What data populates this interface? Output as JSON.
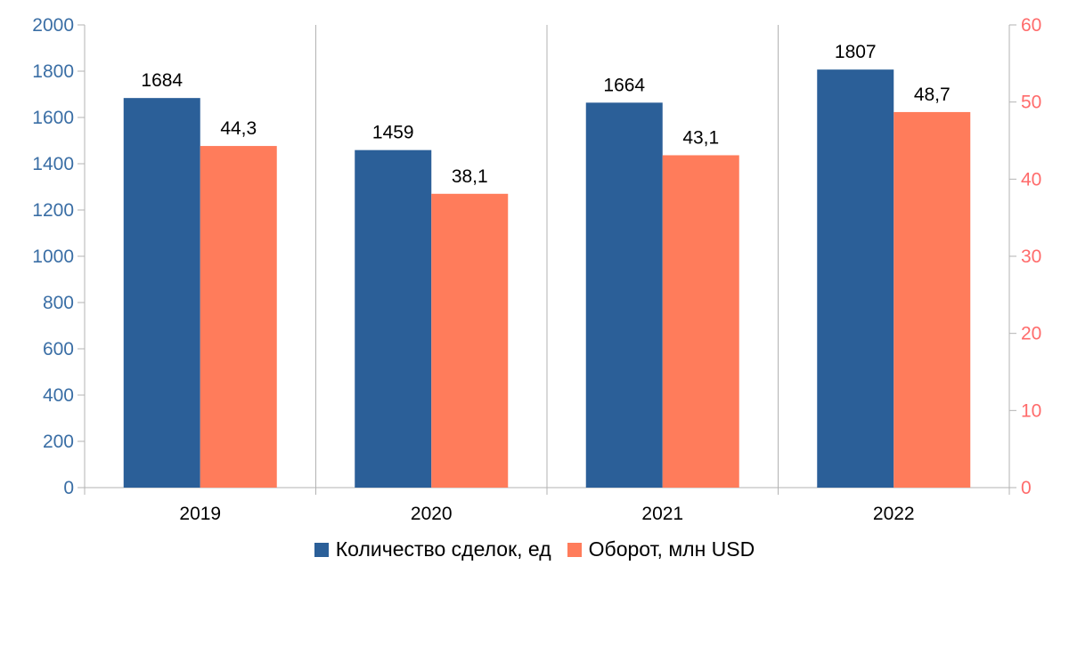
{
  "chart_data": {
    "type": "bar",
    "categories": [
      "2019",
      "2020",
      "2021",
      "2022"
    ],
    "series": [
      {
        "name": "Количество сделок, ед",
        "axis": "left",
        "values": [
          1684,
          1459,
          1664,
          1807
        ],
        "labels": [
          "1684",
          "1459",
          "1664",
          "1807"
        ],
        "color": "#2b5f98"
      },
      {
        "name": "Оборот, млн USD",
        "axis": "right",
        "values": [
          44.3,
          38.1,
          43.1,
          48.7
        ],
        "labels": [
          "44,3",
          "38,1",
          "43,1",
          "48,7"
        ],
        "color": "#ff7c5b"
      }
    ],
    "y_left": {
      "ylim": [
        0,
        2000
      ],
      "ticks": [
        "0",
        "200",
        "400",
        "600",
        "800",
        "1000",
        "1200",
        "1400",
        "1600",
        "1800",
        "2000"
      ],
      "color": "#3a6ea5"
    },
    "y_right": {
      "ylim": [
        0,
        60
      ],
      "ticks": [
        "0",
        "10",
        "20",
        "30",
        "40",
        "50",
        "60"
      ],
      "color": "#ff6b6b"
    },
    "grid": "vertical-separators",
    "legend_position": "bottom"
  }
}
